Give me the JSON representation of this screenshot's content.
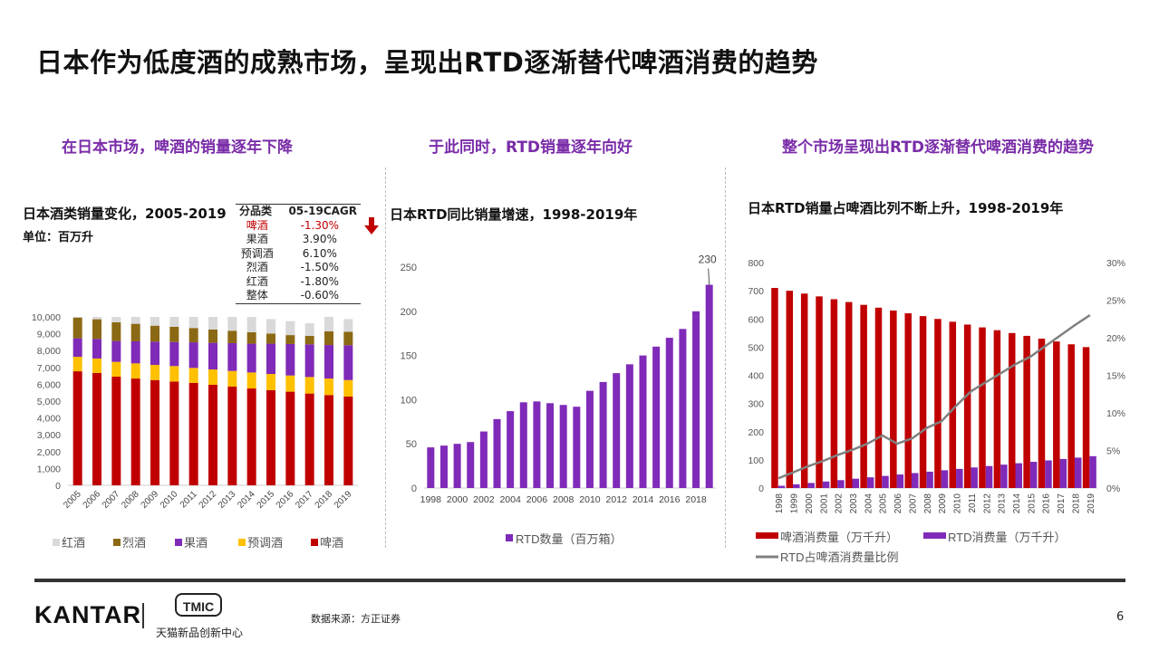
{
  "title": "日本作为低度酒的成熟市场，呈现出RTD逐渐替代啤酒消费的趋势",
  "subtitles": [
    "在日本市场，啤酒的销量逐年下降",
    "于此同时，RTD销量逐年向好",
    "整个市场呈现出RTD逐渐替代啤酒消费的趋势"
  ],
  "colors": {
    "accent": "#7a2ca8",
    "beer": "#c00000",
    "premix": "#ffc000",
    "fruit": "#7f2ab8",
    "shochu": "#8b6914",
    "wine": "#d9d9d9",
    "ratio_line": "#808080",
    "down_arrow": "#c00000"
  },
  "cagr_table": {
    "headers": [
      "分品类",
      "05-19CAGR"
    ],
    "rows": [
      {
        "category": "啤酒",
        "value": "-1.30%",
        "highlight": true
      },
      {
        "category": "果酒",
        "value": "3.90%"
      },
      {
        "category": "预调酒",
        "value": "6.10%"
      },
      {
        "category": "烈酒",
        "value": "-1.50%"
      },
      {
        "category": "红酒",
        "value": "-1.80%"
      },
      {
        "category": "整体",
        "value": "-0.60%"
      }
    ],
    "icon": "down-arrow-icon"
  },
  "chart_data": [
    {
      "type": "bar",
      "stacked": true,
      "title": "日本酒类销量变化，2005-2019",
      "unit": "单位：百万升",
      "categories": [
        "2005",
        "2006",
        "2007",
        "2008",
        "2009",
        "2010",
        "2011",
        "2012",
        "2013",
        "2014",
        "2015",
        "2016",
        "2017",
        "2018",
        "2019"
      ],
      "series": [
        {
          "name": "啤酒",
          "values": [
            6770,
            6670,
            6450,
            6340,
            6250,
            6160,
            6080,
            5970,
            5860,
            5750,
            5650,
            5560,
            5450,
            5360,
            5270
          ]
        },
        {
          "name": "预调酒",
          "values": [
            860,
            860,
            880,
            900,
            900,
            920,
            890,
            910,
            930,
            950,
            960,
            960,
            980,
            980,
            980
          ]
        },
        {
          "name": "果酒",
          "values": [
            1100,
            1160,
            1240,
            1310,
            1380,
            1430,
            1520,
            1580,
            1650,
            1710,
            1800,
            1870,
            1940,
            1990,
            2070
          ]
        },
        {
          "name": "烈酒",
          "values": [
            1230,
            1170,
            1110,
            1040,
            950,
            900,
            850,
            790,
            740,
            680,
            600,
            530,
            500,
            810,
            800
          ]
        },
        {
          "name": "红酒",
          "values": [
            40,
            140,
            320,
            410,
            520,
            590,
            660,
            750,
            820,
            910,
            860,
            830,
            750,
            860,
            750
          ]
        }
      ],
      "legend_order": [
        "红酒",
        "烈酒",
        "果酒",
        "预调酒",
        "啤酒"
      ],
      "legend_placement": "bottom",
      "ylim": [
        0,
        10000
      ],
      "yticks": [
        "0",
        "1,000",
        "2,000",
        "3,000",
        "4,000",
        "5,000",
        "6,000",
        "7,000",
        "8,000",
        "9,000",
        "10,000"
      ]
    },
    {
      "type": "bar",
      "title": "日本RTD同比销量增速，1998-2019年",
      "categories": [
        "1998",
        "1999",
        "2000",
        "2001",
        "2002",
        "2003",
        "2004",
        "2005",
        "2006",
        "2007",
        "2008",
        "2009",
        "2010",
        "2011",
        "2012",
        "2013",
        "2014",
        "2015",
        "2016",
        "2017",
        "2018",
        "2019"
      ],
      "series": [
        {
          "name": "RTD数量（百万箱）",
          "values": [
            46,
            48,
            50,
            52,
            64,
            78,
            87,
            97,
            98,
            96,
            94,
            92,
            110,
            120,
            130,
            140,
            150,
            160,
            170,
            180,
            200,
            230
          ]
        }
      ],
      "data_labels": {
        "2019": "230"
      },
      "xtick_labels": [
        "1998",
        "2000",
        "2002",
        "2004",
        "2006",
        "2008",
        "2010",
        "2012",
        "2014",
        "2016",
        "2018"
      ],
      "yticks": [
        "0",
        "50",
        "100",
        "150",
        "200",
        "250"
      ],
      "ylim": [
        0,
        250
      ],
      "legend_placement": "bottom"
    },
    {
      "type": "bar",
      "title": "日本RTD销量占啤酒比列不断上升，1998-2019年",
      "categories": [
        "1998",
        "1999",
        "2000",
        "2001",
        "2002",
        "2003",
        "2004",
        "2005",
        "2006",
        "2007",
        "2008",
        "2009",
        "2010",
        "2011",
        "2012",
        "2013",
        "2014",
        "2015",
        "2016",
        "2017",
        "2018",
        "2019"
      ],
      "series": [
        {
          "name": "啤酒消费量（万千升）",
          "type": "bar",
          "axis": "left",
          "values": [
            710,
            700,
            690,
            680,
            670,
            660,
            650,
            640,
            630,
            620,
            610,
            600,
            590,
            580,
            570,
            560,
            550,
            540,
            530,
            520,
            510,
            500
          ]
        },
        {
          "name": "RTD消费量（万千升）",
          "type": "bar",
          "axis": "left",
          "values": [
            8,
            13,
            18,
            23,
            28,
            33,
            38,
            43,
            48,
            53,
            58,
            63,
            68,
            73,
            78,
            83,
            88,
            93,
            98,
            103,
            108,
            113
          ]
        },
        {
          "name": "RTD占啤酒消费量比例",
          "type": "line",
          "axis": "right",
          "values": [
            1.3,
            2.1,
            2.9,
            3.6,
            4.4,
            5.1,
            5.9,
            7.0,
            5.9,
            6.6,
            8.0,
            8.9,
            11.0,
            12.9,
            14.1,
            15.3,
            16.5,
            17.5,
            18.9,
            20.3,
            21.7,
            23.0
          ]
        }
      ],
      "ylim": [
        0,
        800
      ],
      "yticks": [
        "0",
        "100",
        "200",
        "300",
        "400",
        "500",
        "600",
        "700",
        "800"
      ],
      "y2lim": [
        0,
        30
      ],
      "y2ticks": [
        "0%",
        "5%",
        "10%",
        "15%",
        "20%",
        "25%",
        "30%"
      ],
      "legend_placement": "bottom"
    }
  ],
  "footer": {
    "brand": "KANTAR",
    "partner_logo": "TMIC",
    "partner_name": "天猫新品创新中心",
    "source": "数据来源：方正证券",
    "page": "6"
  }
}
